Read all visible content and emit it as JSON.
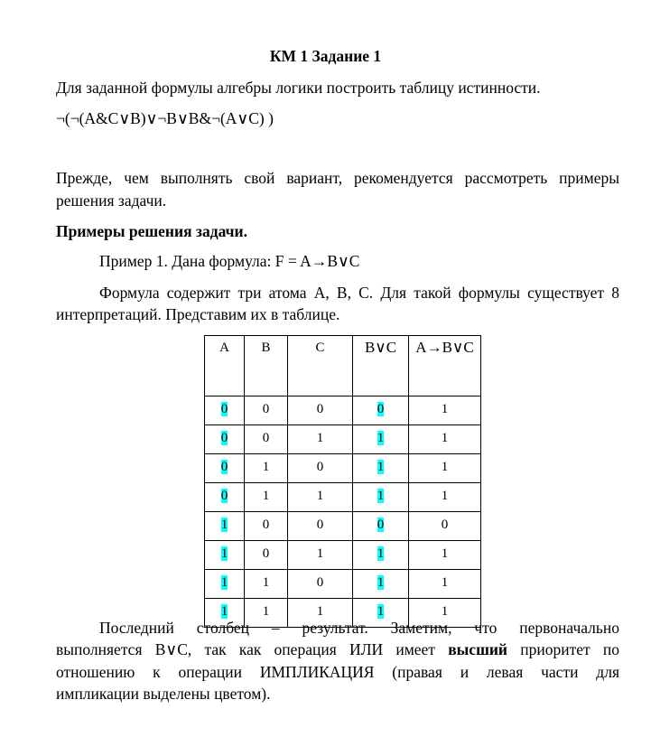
{
  "title": "КМ 1 Задание 1",
  "task": "Для заданной формулы алгебры логики построить таблицу истинности.",
  "formula": "¬(¬(A&C∨B)∨¬B∨B&¬(A∨C) )",
  "advice": [
    "Прежде, чем выполнять свой вариант, рекомендуется рассмотреть примеры",
    "решения задачи."
  ],
  "examples_heading": "Примеры решения задачи.",
  "example1": "Пример 1. Дана формула:  F = A→B∨C",
  "example1_text": [
    "Формула содержит три атома A, B, C. Для такой формулы существует 8",
    "интерпретаций. Представим их в таблице."
  ],
  "highlight_color": "#00ffff",
  "table": {
    "headers": [
      "A",
      "B",
      "C",
      "B∨C",
      "A→B∨C"
    ],
    "rows": [
      [
        "0",
        "0",
        "0",
        "0",
        "1"
      ],
      [
        "0",
        "0",
        "1",
        "1",
        "1"
      ],
      [
        "0",
        "1",
        "0",
        "1",
        "1"
      ],
      [
        "0",
        "1",
        "1",
        "1",
        "1"
      ],
      [
        "1",
        "0",
        "0",
        "0",
        "0"
      ],
      [
        "1",
        "0",
        "1",
        "1",
        "1"
      ],
      [
        "1",
        "1",
        "0",
        "1",
        "1"
      ],
      [
        "1",
        "1",
        "1",
        "1",
        "1"
      ]
    ],
    "highlighted_columns": [
      0,
      3
    ]
  },
  "conclusion": {
    "line1": "Последний столбец – результат. Заметим, что первоначально",
    "line2_a": "выполняется B∨C, так как операция ИЛИ  имеет ",
    "line2_bold": "высший",
    "line2_b": " приоритет по",
    "line3": "отношению к операции ИМПЛИКАЦИЯ (правая и левая части для",
    "line4": "импликации выделены цветом)."
  }
}
